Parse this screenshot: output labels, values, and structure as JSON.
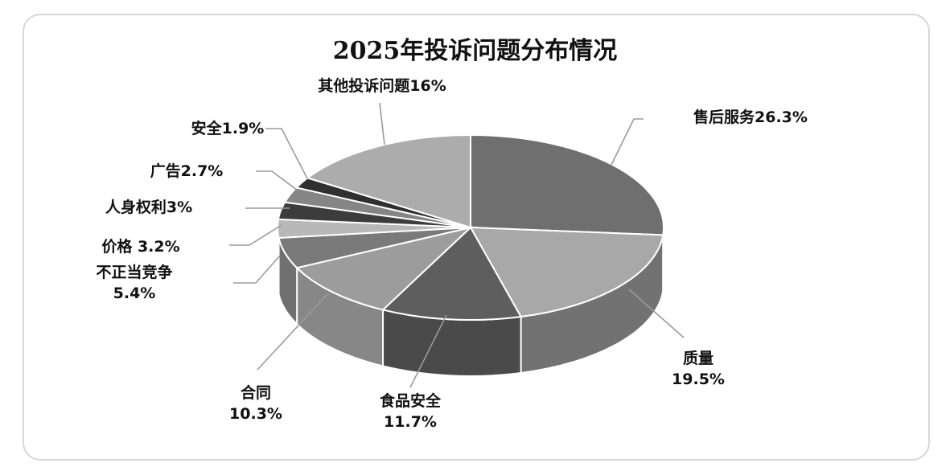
{
  "chart_data": {
    "type": "pie",
    "title": "2025年投诉问题分布情况",
    "slices": [
      {
        "label": "售后服务26.3%",
        "value": 26.3,
        "color": "#6f6f6f",
        "labelLines": [
          "售后服务26.3%"
        ]
      },
      {
        "label": "质量19.5%",
        "value": 19.5,
        "color": "#a8a8a8",
        "labelLines": [
          "质量",
          "19.5%"
        ]
      },
      {
        "label": "食品安全11.7%",
        "value": 11.7,
        "color": "#5e5e5e",
        "labelLines": [
          "食品安全",
          "11.7%"
        ]
      },
      {
        "label": "合同10.3%",
        "value": 10.3,
        "color": "#9c9c9c",
        "labelLines": [
          "合同",
          "10.3%"
        ]
      },
      {
        "label": "不正当竞争5.4%",
        "value": 5.4,
        "color": "#7a7a7a",
        "labelLines": [
          "不正当竞争",
          "5.4%"
        ]
      },
      {
        "label": "价格 3.2%",
        "value": 3.2,
        "color": "#b8b8b8",
        "labelLines": [
          "价格 3.2%"
        ]
      },
      {
        "label": "人身权利3%",
        "value": 3.0,
        "color": "#3c3c3c",
        "labelLines": [
          "人身权利3%"
        ]
      },
      {
        "label": "广告2.7%",
        "value": 2.7,
        "color": "#858585",
        "labelLines": [
          "广告2.7%"
        ]
      },
      {
        "label": "安全1.9%",
        "value": 1.9,
        "color": "#303030",
        "labelLines": [
          "安全1.9%"
        ]
      },
      {
        "label": "其他投诉问题16%",
        "value": 16.0,
        "color": "#acacac",
        "labelLines": [
          "其他投诉问题16%"
        ]
      }
    ],
    "legend": "none",
    "style": "3d-pie"
  }
}
